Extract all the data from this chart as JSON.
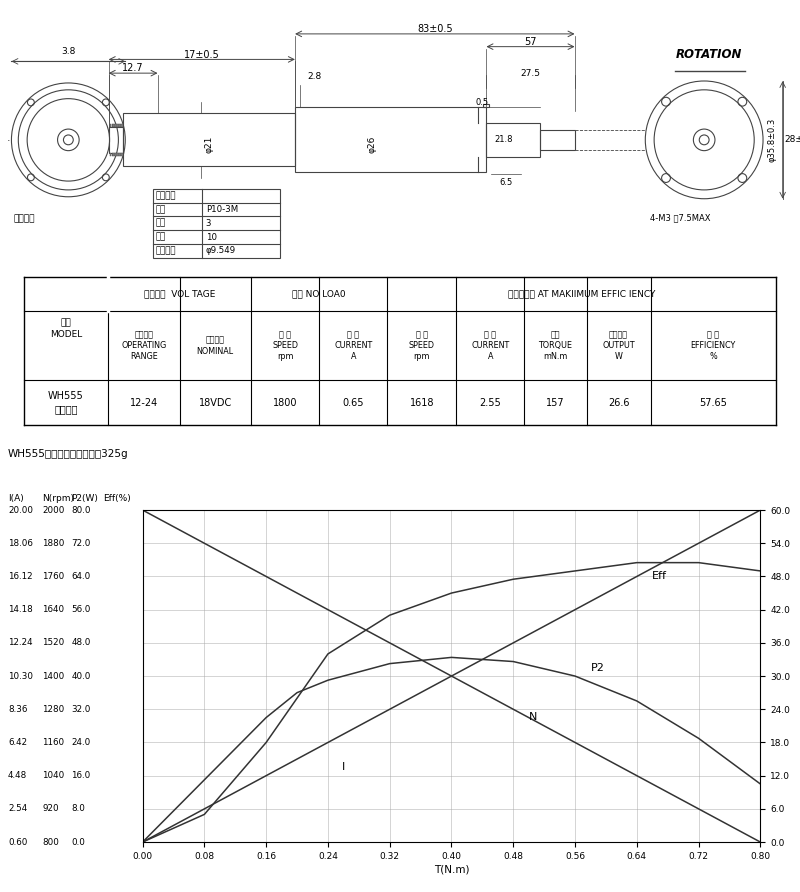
{
  "weight_note": "WH555行星减速电机净重：325g",
  "bg_color": "#ffffff",
  "line_color": "#444444",
  "curve_color": "#333333",
  "grid_color": "#aaaaaa",
  "x_ticks": [
    0.0,
    0.08,
    0.16,
    0.24,
    0.32,
    0.4,
    0.48,
    0.56,
    0.64,
    0.72,
    0.8
  ],
  "left_yticks_I": [
    0.6,
    2.54,
    4.48,
    6.42,
    8.36,
    10.3,
    12.24,
    14.18,
    16.12,
    18.06,
    20.0
  ],
  "left_yticks_N": [
    800,
    920,
    1040,
    1160,
    1280,
    1400,
    1520,
    1640,
    1760,
    1880,
    2000
  ],
  "left_yticks_P2": [
    0.0,
    8.0,
    16.0,
    24.0,
    32.0,
    40.0,
    48.0,
    56.0,
    64.0,
    72.0,
    80.0
  ],
  "right_yticks_Eff": [
    0.0,
    6.0,
    12.0,
    18.0,
    24.0,
    30.0,
    36.0,
    42.0,
    48.0,
    54.0,
    60.0
  ],
  "T_values": [
    0.0,
    0.08,
    0.16,
    0.2,
    0.24,
    0.32,
    0.4,
    0.48,
    0.56,
    0.64,
    0.72,
    0.8
  ],
  "I_values": [
    0.6,
    2.54,
    4.48,
    5.45,
    6.42,
    8.36,
    10.3,
    12.24,
    14.18,
    16.12,
    18.06,
    20.0
  ],
  "N_values": [
    2000,
    1880,
    1760,
    1700,
    1640,
    1520,
    1400,
    1280,
    1160,
    1040,
    920,
    800
  ],
  "P2_values": [
    0.0,
    15.0,
    30.0,
    36.0,
    39.0,
    43.0,
    44.5,
    43.5,
    40.0,
    34.0,
    25.0,
    14.0
  ],
  "Eff_values": [
    0.0,
    5.0,
    18.0,
    26.0,
    34.0,
    41.0,
    45.0,
    47.5,
    49.0,
    50.5,
    50.5,
    49.0
  ],
  "table_data": [
    "WH555\n行星减速",
    "12-24",
    "18VDC",
    "1800",
    "0.65",
    "1618",
    "2.55",
    "157",
    "26.6",
    "57.65"
  ]
}
